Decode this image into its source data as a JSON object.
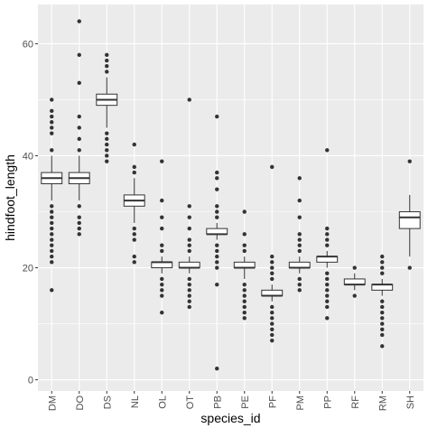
{
  "chart_data": {
    "type": "boxplot",
    "xlabel": "species_id",
    "ylabel": "hindfoot_length",
    "ylim": [
      -2,
      67
    ],
    "yticks": [
      0,
      20,
      40,
      60
    ],
    "grid": true,
    "panel_background": "#ebebeb",
    "grid_major_color": "#ffffff",
    "box_fill": "#ffffff",
    "box_line_color": "#333333",
    "categories": [
      "DM",
      "DO",
      "DS",
      "NL",
      "OL",
      "OT",
      "PB",
      "PE",
      "PF",
      "PM",
      "PP",
      "RF",
      "RM",
      "SH"
    ],
    "boxes": [
      {
        "id": "DM",
        "min": 32,
        "q1": 35,
        "median": 36,
        "q3": 37,
        "max": 40,
        "outliers": [
          16,
          21,
          22,
          23,
          24,
          25,
          26,
          27,
          28,
          29,
          30,
          31,
          41,
          44,
          45,
          46,
          47,
          48,
          50
        ]
      },
      {
        "id": "DO",
        "min": 32,
        "q1": 35,
        "median": 36,
        "q3": 37,
        "max": 40,
        "outliers": [
          26,
          27,
          28,
          29,
          31,
          41,
          43,
          45,
          47,
          53,
          58,
          64
        ]
      },
      {
        "id": "DS",
        "min": 45,
        "q1": 49,
        "median": 50,
        "q3": 51,
        "max": 54,
        "outliers": [
          39,
          40,
          41,
          42,
          43,
          44,
          55,
          56,
          57,
          58
        ]
      },
      {
        "id": "NL",
        "min": 28,
        "q1": 31,
        "median": 32,
        "q3": 33,
        "max": 36,
        "outliers": [
          21,
          22,
          25,
          26,
          27,
          37,
          38,
          42
        ]
      },
      {
        "id": "OL",
        "min": 19,
        "q1": 20,
        "median": 21,
        "q3": 21,
        "max": 22,
        "outliers": [
          12,
          15,
          16,
          17,
          18,
          23,
          24,
          27,
          29,
          32,
          39
        ]
      },
      {
        "id": "OT",
        "min": 19,
        "q1": 20,
        "median": 20,
        "q3": 21,
        "max": 22,
        "outliers": [
          13,
          14,
          15,
          16,
          17,
          18,
          23,
          24,
          25,
          27,
          29,
          31,
          50
        ]
      },
      {
        "id": "PB",
        "min": 25,
        "q1": 26,
        "median": 26,
        "q3": 27,
        "max": 28,
        "outliers": [
          2,
          17,
          20,
          21,
          22,
          23,
          24,
          29,
          30,
          31,
          34,
          36,
          37,
          47
        ]
      },
      {
        "id": "PE",
        "min": 18,
        "q1": 20,
        "median": 20,
        "q3": 21,
        "max": 22,
        "outliers": [
          11,
          12,
          13,
          14,
          15,
          16,
          17,
          23,
          24,
          26,
          30
        ]
      },
      {
        "id": "PF",
        "min": 14,
        "q1": 15,
        "median": 15,
        "q3": 16,
        "max": 17,
        "outliers": [
          7,
          8,
          9,
          10,
          11,
          12,
          13,
          18,
          19,
          20,
          21,
          22,
          38
        ]
      },
      {
        "id": "PM",
        "min": 19,
        "q1": 20,
        "median": 20,
        "q3": 21,
        "max": 22,
        "outliers": [
          16,
          17,
          18,
          23,
          24,
          25,
          26,
          29,
          32,
          36
        ]
      },
      {
        "id": "PP",
        "min": 20,
        "q1": 21,
        "median": 22,
        "q3": 22,
        "max": 23,
        "outliers": [
          11,
          13,
          14,
          15,
          16,
          17,
          18,
          19,
          24,
          25,
          26,
          27,
          41
        ]
      },
      {
        "id": "RF",
        "min": 16,
        "q1": 17,
        "median": 17,
        "q3": 18,
        "max": 19,
        "outliers": [
          15,
          20
        ]
      },
      {
        "id": "RM",
        "min": 15,
        "q1": 16,
        "median": 17,
        "q3": 17,
        "max": 18,
        "outliers": [
          6,
          8,
          9,
          10,
          11,
          12,
          13,
          14,
          19,
          20,
          21,
          22
        ]
      },
      {
        "id": "SH",
        "min": 22,
        "q1": 27,
        "median": 29,
        "q3": 30,
        "max": 33,
        "outliers": [
          20,
          39
        ]
      }
    ]
  }
}
